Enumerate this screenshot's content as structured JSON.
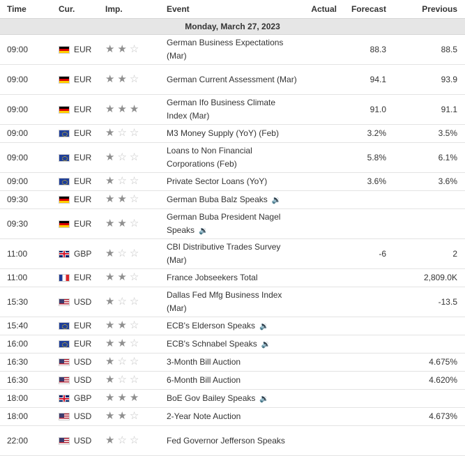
{
  "header": {
    "time": "Time",
    "currency": "Cur.",
    "importance": "Imp.",
    "event": "Event",
    "actual": "Actual",
    "forecast": "Forecast",
    "previous": "Previous"
  },
  "date_label": "Monday, March 27, 2023",
  "events": [
    {
      "time": "09:00",
      "flag": "de",
      "cur": "EUR",
      "imp": 2,
      "event": "German Business Expectations (Mar)",
      "speaks": false,
      "actual": "",
      "forecast": "88.3",
      "previous": "88.5"
    },
    {
      "time": "09:00",
      "flag": "de",
      "cur": "EUR",
      "imp": 2,
      "event": "German Current Assessment (Mar)",
      "speaks": false,
      "actual": "",
      "forecast": "94.1",
      "previous": "93.9"
    },
    {
      "time": "09:00",
      "flag": "de",
      "cur": "EUR",
      "imp": 3,
      "event": "German Ifo Business Climate Index (Mar)",
      "speaks": false,
      "actual": "",
      "forecast": "91.0",
      "previous": "91.1"
    },
    {
      "time": "09:00",
      "flag": "eu",
      "cur": "EUR",
      "imp": 1,
      "event": "M3 Money Supply (YoY) (Feb)",
      "speaks": false,
      "actual": "",
      "forecast": "3.2%",
      "previous": "3.5%"
    },
    {
      "time": "09:00",
      "flag": "eu",
      "cur": "EUR",
      "imp": 1,
      "event": "Loans to Non Financial Corporations (Feb)",
      "speaks": false,
      "actual": "",
      "forecast": "5.8%",
      "previous": "6.1%"
    },
    {
      "time": "09:00",
      "flag": "eu",
      "cur": "EUR",
      "imp": 1,
      "event": "Private Sector Loans (YoY)",
      "speaks": false,
      "actual": "",
      "forecast": "3.6%",
      "previous": "3.6%"
    },
    {
      "time": "09:30",
      "flag": "de",
      "cur": "EUR",
      "imp": 2,
      "event": "German Buba Balz Speaks",
      "speaks": true,
      "actual": "",
      "forecast": "",
      "previous": ""
    },
    {
      "time": "09:30",
      "flag": "de",
      "cur": "EUR",
      "imp": 2,
      "event": "German Buba President Nagel Speaks",
      "speaks": true,
      "actual": "",
      "forecast": "",
      "previous": ""
    },
    {
      "time": "11:00",
      "flag": "gb",
      "cur": "GBP",
      "imp": 1,
      "event": "CBI Distributive Trades Survey (Mar)",
      "speaks": false,
      "actual": "",
      "forecast": "-6",
      "previous": "2"
    },
    {
      "time": "11:00",
      "flag": "fr",
      "cur": "EUR",
      "imp": 2,
      "event": "France Jobseekers Total",
      "speaks": false,
      "actual": "",
      "forecast": "",
      "previous": "2,809.0K"
    },
    {
      "time": "15:30",
      "flag": "us",
      "cur": "USD",
      "imp": 1,
      "event": "Dallas Fed Mfg Business Index (Mar)",
      "speaks": false,
      "actual": "",
      "forecast": "",
      "previous": "-13.5"
    },
    {
      "time": "15:40",
      "flag": "eu",
      "cur": "EUR",
      "imp": 2,
      "event": "ECB's Elderson Speaks",
      "speaks": true,
      "actual": "",
      "forecast": "",
      "previous": ""
    },
    {
      "time": "16:00",
      "flag": "eu",
      "cur": "EUR",
      "imp": 2,
      "event": "ECB's Schnabel Speaks",
      "speaks": true,
      "actual": "",
      "forecast": "",
      "previous": ""
    },
    {
      "time": "16:30",
      "flag": "us",
      "cur": "USD",
      "imp": 1,
      "event": "3-Month Bill Auction",
      "speaks": false,
      "actual": "",
      "forecast": "",
      "previous": "4.675%"
    },
    {
      "time": "16:30",
      "flag": "us",
      "cur": "USD",
      "imp": 1,
      "event": "6-Month Bill Auction",
      "speaks": false,
      "actual": "",
      "forecast": "",
      "previous": "4.620%"
    },
    {
      "time": "18:00",
      "flag": "gb",
      "cur": "GBP",
      "imp": 3,
      "event": "BoE Gov Bailey Speaks",
      "speaks": true,
      "actual": "",
      "forecast": "",
      "previous": ""
    },
    {
      "time": "18:00",
      "flag": "us",
      "cur": "USD",
      "imp": 2,
      "event": "2-Year Note Auction",
      "speaks": false,
      "actual": "",
      "forecast": "",
      "previous": "4.673%"
    },
    {
      "time": "22:00",
      "flag": "us",
      "cur": "USD",
      "imp": 1,
      "event": "Fed Governor Jefferson Speaks",
      "speaks": false,
      "actual": "",
      "forecast": "",
      "previous": ""
    }
  ]
}
